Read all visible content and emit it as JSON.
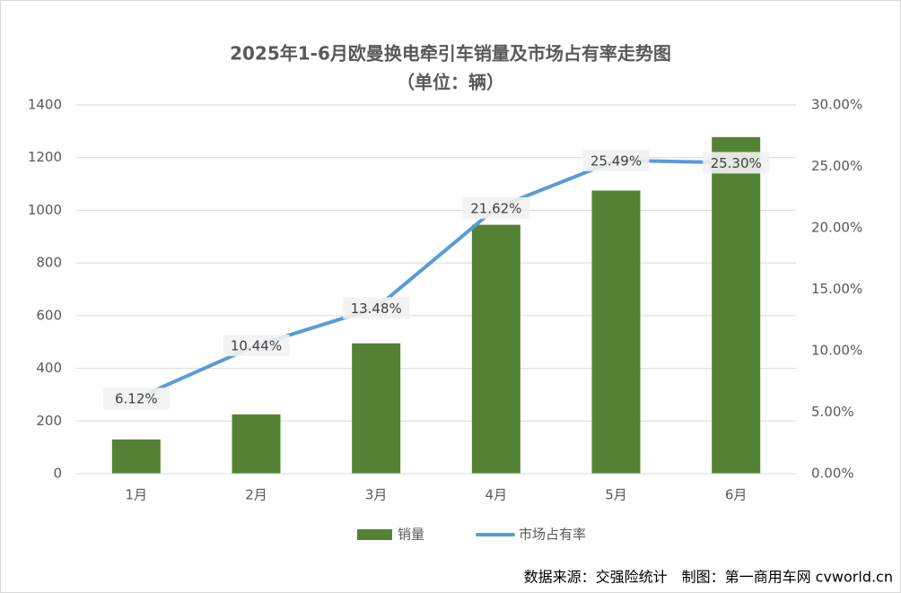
{
  "chart_data": {
    "type": "bar_line",
    "title": "2025年1-6月欧曼换电牵引车销量及市场占有率走势图",
    "subtitle": "（单位：辆）",
    "categories": [
      "1月",
      "2月",
      "3月",
      "4月",
      "5月",
      "6月"
    ],
    "series": [
      {
        "name": "销量",
        "type": "bar",
        "color": "#548235",
        "values": [
          130,
          225,
          495,
          945,
          1075,
          1278
        ]
      },
      {
        "name": "市场占有率",
        "type": "line",
        "axis": "y2",
        "color": "#5b9bd5",
        "values": [
          6.12,
          10.44,
          13.48,
          21.62,
          25.49,
          25.3
        ],
        "value_labels": [
          "6.12%",
          "10.44%",
          "13.48%",
          "21.62%",
          "25.49%",
          "25.30%"
        ]
      }
    ],
    "ylim": [
      0,
      1400
    ],
    "yticks": [
      0,
      200,
      400,
      600,
      800,
      1000,
      1200,
      1400
    ],
    "y2lim": [
      0,
      30
    ],
    "y2ticks": [
      {
        "value": 0,
        "label": "0.00%"
      },
      {
        "value": 5,
        "label": "5.00%"
      },
      {
        "value": 10,
        "label": "10.00%"
      },
      {
        "value": 15,
        "label": "15.00%"
      },
      {
        "value": 20,
        "label": "20.00%"
      },
      {
        "value": 25,
        "label": "25.00%"
      },
      {
        "value": 30,
        "label": "30.00%"
      }
    ],
    "grid": true,
    "legend": "bottom",
    "source": "数据来源：交强险统计　制图：第一商用车网 cvworld.cn"
  }
}
